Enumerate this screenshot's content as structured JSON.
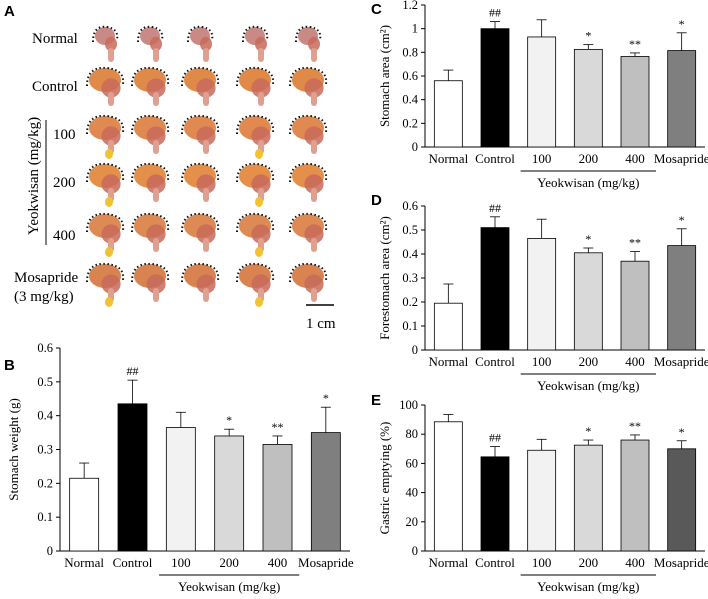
{
  "panel_a": {
    "label": "A",
    "rows": [
      "Normal",
      "Control",
      "100",
      "200",
      "400",
      "Mosapride",
      "(3 mg/kg)"
    ],
    "group_label": "Yeokwisan (mg/kg)",
    "scale_bar": "1 cm"
  },
  "chart_data": [
    {
      "id": "B",
      "type": "bar",
      "ylabel": "Stomach weight (g)",
      "categories": [
        "Normal",
        "Control",
        "100",
        "200",
        "400",
        "Mosapride"
      ],
      "values": [
        0.215,
        0.435,
        0.365,
        0.34,
        0.315,
        0.35
      ],
      "errors": [
        0.045,
        0.07,
        0.045,
        0.02,
        0.025,
        0.075
      ],
      "sig": [
        "",
        "##",
        "",
        "*",
        "**",
        "*"
      ],
      "ylim": [
        0,
        0.6
      ],
      "yticks": [
        "0",
        "0.1",
        "0.2",
        "0.3",
        "0.4",
        "0.5",
        "0.6"
      ],
      "group_label": "Yeokwisan (mg/kg)",
      "colors": [
        "#ffffff",
        "#000000",
        "#f2f2f2",
        "#d9d9d9",
        "#bfbfbf",
        "#7f7f7f"
      ]
    },
    {
      "id": "C",
      "type": "bar",
      "ylabel": "Stomach area (cm²)",
      "categories": [
        "Normal",
        "Control",
        "100",
        "200",
        "400",
        "Mosapride"
      ],
      "values": [
        0.56,
        1.0,
        0.93,
        0.825,
        0.765,
        0.815
      ],
      "errors": [
        0.09,
        0.06,
        0.145,
        0.04,
        0.03,
        0.15
      ],
      "sig": [
        "",
        "##",
        "",
        "*",
        "**",
        "*"
      ],
      "ylim": [
        0,
        1.2
      ],
      "yticks": [
        "0",
        "0.2",
        "0.4",
        "0.6",
        "0.8",
        "1",
        "1.2"
      ],
      "group_label": "Yeokwisan (mg/kg)",
      "colors": [
        "#ffffff",
        "#000000",
        "#f2f2f2",
        "#d9d9d9",
        "#bfbfbf",
        "#7f7f7f"
      ]
    },
    {
      "id": "D",
      "type": "bar",
      "ylabel": "Forestomach area (cm²)",
      "categories": [
        "Normal",
        "Control",
        "100",
        "200",
        "400",
        "Mosapride"
      ],
      "values": [
        0.195,
        0.51,
        0.465,
        0.405,
        0.37,
        0.435
      ],
      "errors": [
        0.08,
        0.045,
        0.08,
        0.02,
        0.04,
        0.07
      ],
      "sig": [
        "",
        "##",
        "",
        "*",
        "**",
        "*"
      ],
      "ylim": [
        0,
        0.6
      ],
      "yticks": [
        "0",
        "0.1",
        "0.2",
        "0.3",
        "0.4",
        "0.5",
        "0.6"
      ],
      "group_label": "Yeokwisan (mg/kg)",
      "colors": [
        "#ffffff",
        "#000000",
        "#f2f2f2",
        "#d9d9d9",
        "#bfbfbf",
        "#7f7f7f"
      ]
    },
    {
      "id": "E",
      "type": "bar",
      "ylabel": "Gastric emptying (%)",
      "categories": [
        "Normal",
        "Control",
        "100",
        "200",
        "400",
        "Mosapride"
      ],
      "values": [
        88.5,
        64.5,
        69,
        72.5,
        76,
        70
      ],
      "errors": [
        5,
        7,
        7.5,
        3.5,
        3.5,
        5.5
      ],
      "sig": [
        "",
        "##",
        "",
        "*",
        "**",
        "*"
      ],
      "ylim": [
        0,
        100
      ],
      "yticks": [
        "0",
        "20",
        "40",
        "60",
        "80",
        "100"
      ],
      "group_label": "Yeokwisan (mg/kg)",
      "colors": [
        "#ffffff",
        "#000000",
        "#f2f2f2",
        "#d9d9d9",
        "#bfbfbf",
        "#595959"
      ]
    }
  ]
}
